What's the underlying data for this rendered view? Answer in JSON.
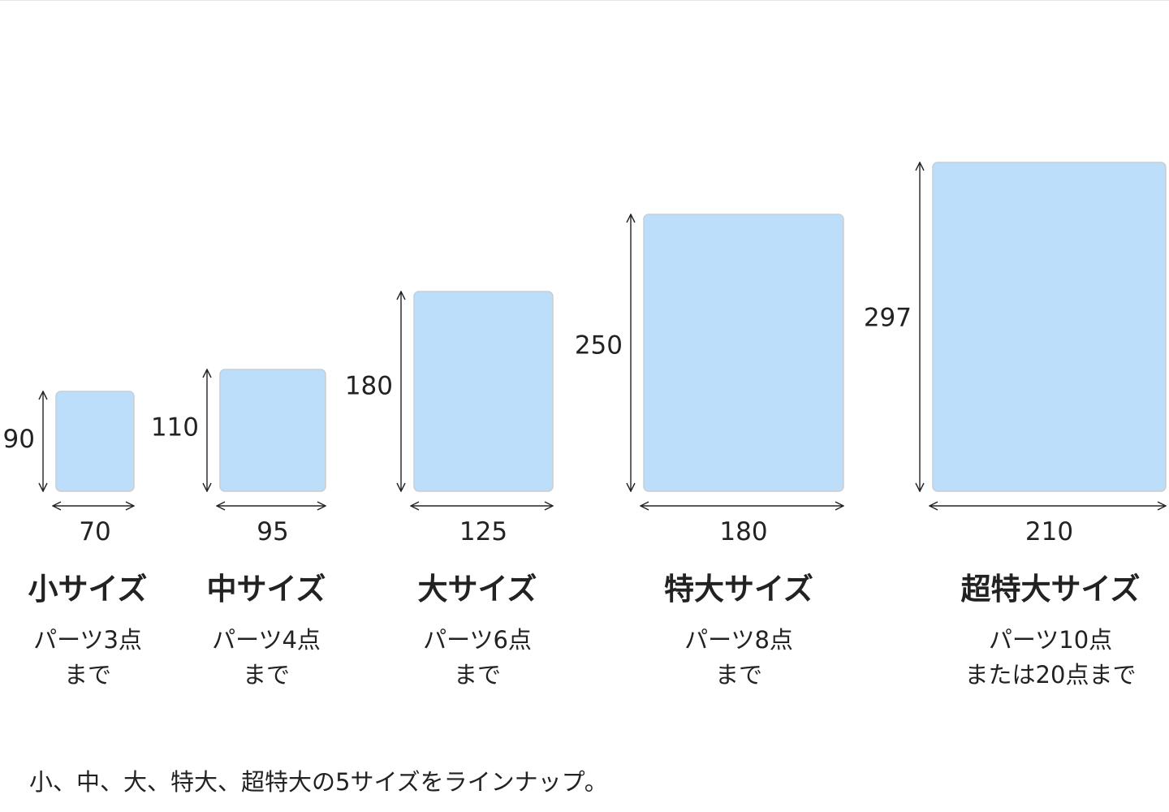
{
  "unit_note": "",
  "sizes": [
    {
      "name": "小サイズ",
      "height_label": "90",
      "width_label": "70",
      "height": 90,
      "width": 70,
      "desc": [
        "パーツ3点",
        "まで"
      ]
    },
    {
      "name": "中サイズ",
      "height_label": "110",
      "width_label": "95",
      "height": 110,
      "width": 95,
      "desc": [
        "パーツ4点",
        "まで"
      ]
    },
    {
      "name": "大サイズ",
      "height_label": "180",
      "width_label": "125",
      "height": 180,
      "width": 125,
      "desc": [
        "パーツ6点",
        "まで"
      ]
    },
    {
      "name": "特大サイズ",
      "height_label": "250",
      "width_label": "180",
      "height": 250,
      "width": 180,
      "desc": [
        "パーツ8点",
        "まで"
      ]
    },
    {
      "name": "超特大サイズ",
      "height_label": "297",
      "width_label": "210",
      "height": 297,
      "width": 210,
      "desc": [
        "パーツ10点",
        "または20点まで"
      ]
    }
  ],
  "footnote": "小、中、大、特大、超特大の5サイズをラインナップ。",
  "colors": {
    "card_fill": "#bddefb",
    "card_border": "#c9cdd1",
    "text": "#222222"
  }
}
